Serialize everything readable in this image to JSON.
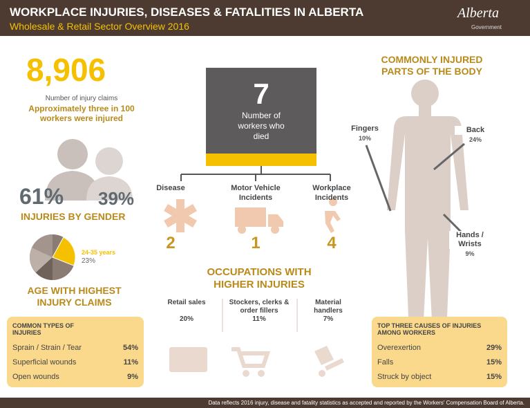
{
  "header": {
    "title": "WORKPLACE INJURIES, DISEASES & FATALITIES IN ALBERTA",
    "subtitle": "Wholesale & Retail Sector Overview 2016",
    "logo": "Alberta",
    "logo_sub": "Government"
  },
  "claims": {
    "number": "8,906",
    "label": "Number of injury claims",
    "note": "Approximately three in 100 workers were injured"
  },
  "gender": {
    "male": "61%",
    "female": "39%",
    "heading": "INJURIES BY GENDER"
  },
  "age": {
    "range": "24-35 years",
    "value": 23,
    "value_label": "23%",
    "heading": "AGE WITH HIGHEST INJURY CLAIMS"
  },
  "fatalities": {
    "number": "7",
    "label": "Number of workers who died",
    "causes": [
      {
        "label": "Disease",
        "count": "2"
      },
      {
        "label": "Motor Vehicle Incidents",
        "count": "1"
      },
      {
        "label": "Workplace Incidents",
        "count": "4"
      }
    ]
  },
  "occupations": {
    "heading": "OCCUPATIONS WITH HIGHER INJURIES",
    "items": [
      {
        "label": "Retail sales",
        "pct": "20%"
      },
      {
        "label": "Stockers, clerks & order fillers",
        "pct": "11%"
      },
      {
        "label": "Material handlers",
        "pct": "7%"
      }
    ]
  },
  "injury_types": {
    "heading": "COMMON TYPES OF INJURIES",
    "rows": [
      {
        "label": "Sprain / Strain / Tear",
        "pct": "54%"
      },
      {
        "label": "Superficial wounds",
        "pct": "11%"
      },
      {
        "label": "Open wounds",
        "pct": "9%"
      }
    ]
  },
  "body": {
    "heading": "COMMONLY INJURED PARTS OF THE BODY",
    "parts": [
      {
        "label": "Fingers",
        "pct": "10%"
      },
      {
        "label": "Back",
        "pct": "24%"
      },
      {
        "label": "Hands / Wrists",
        "pct": "9%"
      }
    ]
  },
  "causes": {
    "heading": "TOP THREE CAUSES OF INJURIES AMONG WORKERS",
    "rows": [
      {
        "label": "Overexertion",
        "pct": "29%"
      },
      {
        "label": "Falls",
        "pct": "15%"
      },
      {
        "label": "Struck by object",
        "pct": "15%"
      }
    ]
  },
  "footer": "Data reflects 2016 injury, disease and fatality statistics as accepted and reported by the Workers' Compensation Board of Alberta."
}
